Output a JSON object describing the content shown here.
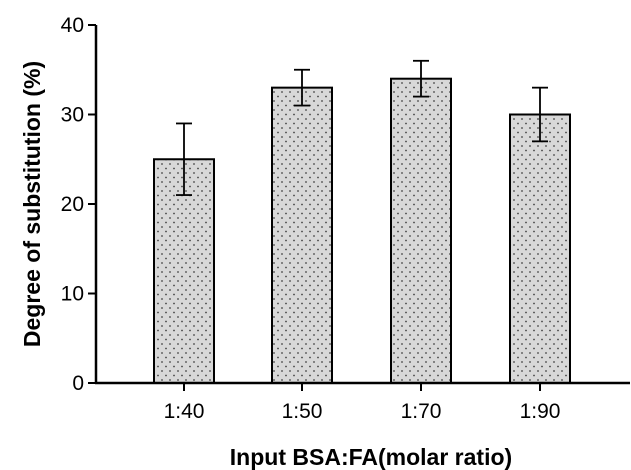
{
  "chart_data": {
    "type": "bar",
    "title": "",
    "xlabel": "Input BSA:FA(molar ratio)",
    "ylabel": "Degree of substitution (%)",
    "categories": [
      "1:40",
      "1:50",
      "1:70",
      "1:90"
    ],
    "values": [
      25,
      33,
      34,
      30
    ],
    "error_low": [
      21,
      31,
      32,
      27
    ],
    "error_high": [
      29,
      35,
      36,
      33
    ],
    "ylim": [
      0,
      40
    ],
    "yticks": [
      "0",
      "10",
      "20",
      "30",
      "40"
    ],
    "grid": false,
    "bar_fill": "#d8d8d8",
    "bar_pattern": "dots",
    "bar_stroke": "#000000"
  }
}
